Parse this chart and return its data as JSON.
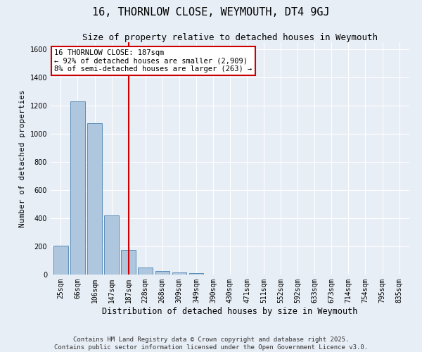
{
  "title": "16, THORNLOW CLOSE, WEYMOUTH, DT4 9GJ",
  "subtitle": "Size of property relative to detached houses in Weymouth",
  "xlabel": "Distribution of detached houses by size in Weymouth",
  "ylabel": "Number of detached properties",
  "categories": [
    "25sqm",
    "66sqm",
    "106sqm",
    "147sqm",
    "187sqm",
    "228sqm",
    "268sqm",
    "309sqm",
    "349sqm",
    "390sqm",
    "430sqm",
    "471sqm",
    "511sqm",
    "552sqm",
    "592sqm",
    "633sqm",
    "673sqm",
    "714sqm",
    "754sqm",
    "795sqm",
    "835sqm"
  ],
  "values": [
    205,
    1230,
    1075,
    420,
    175,
    50,
    25,
    15,
    10,
    0,
    0,
    0,
    0,
    0,
    0,
    0,
    0,
    0,
    0,
    0,
    0
  ],
  "bar_color": "#aec6de",
  "bar_edge_color": "#5b8db8",
  "red_line_index": 4,
  "red_line_color": "#cc0000",
  "annotation_text": "16 THORNLOW CLOSE: 187sqm\n← 92% of detached houses are smaller (2,909)\n8% of semi-detached houses are larger (263) →",
  "annotation_box_color": "#ffffff",
  "annotation_box_edge_color": "#cc0000",
  "ylim": [
    0,
    1650
  ],
  "yticks": [
    0,
    200,
    400,
    600,
    800,
    1000,
    1200,
    1400,
    1600
  ],
  "background_color": "#e8eef6",
  "grid_color": "#ffffff",
  "footer_line1": "Contains HM Land Registry data © Crown copyright and database right 2025.",
  "footer_line2": "Contains public sector information licensed under the Open Government Licence v3.0.",
  "title_fontsize": 11,
  "subtitle_fontsize": 9,
  "xlabel_fontsize": 8.5,
  "ylabel_fontsize": 8,
  "tick_fontsize": 7,
  "annotation_fontsize": 7.5,
  "footer_fontsize": 6.5
}
